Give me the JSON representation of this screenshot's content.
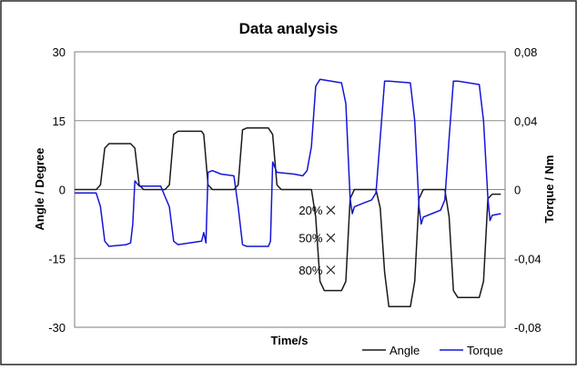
{
  "chart_data": {
    "type": "line",
    "title": "Data analysis",
    "xlabel": "Time/s",
    "ylabel": "Angle / Degree",
    "y2label": "Torque / Nm",
    "ylim": [
      -30,
      30
    ],
    "y2lim": [
      -0.08,
      0.08
    ],
    "yticks": [
      "-30",
      "-15",
      "0",
      "15",
      "30"
    ],
    "yticks_values": [
      -30,
      -15,
      0,
      15,
      30
    ],
    "y2ticks": [
      "-0,08",
      "-0,04",
      "0",
      "0,04",
      "0,08"
    ],
    "y2ticks_values": [
      -0.08,
      -0.04,
      0,
      0.04,
      0.08
    ],
    "grid": true,
    "legend_position": "bottom-right",
    "x_range": [
      0,
      100
    ],
    "series": [
      {
        "name": "Angle",
        "axis": "left",
        "color": "#1a1a1a",
        "points": [
          [
            0,
            0
          ],
          [
            5,
            0
          ],
          [
            6,
            1
          ],
          [
            7,
            9
          ],
          [
            8,
            10
          ],
          [
            13,
            10
          ],
          [
            14,
            9
          ],
          [
            15,
            1
          ],
          [
            16,
            0
          ],
          [
            21,
            0
          ],
          [
            22,
            1
          ],
          [
            23,
            12
          ],
          [
            24,
            12.7
          ],
          [
            29.5,
            12.7
          ],
          [
            30,
            12
          ],
          [
            31,
            1
          ],
          [
            32,
            0
          ],
          [
            37,
            0
          ],
          [
            38,
            1
          ],
          [
            39,
            13
          ],
          [
            40,
            13.4
          ],
          [
            45,
            13.4
          ],
          [
            46,
            12
          ],
          [
            47,
            1
          ],
          [
            48,
            0
          ],
          [
            54,
            0
          ],
          [
            55,
            0
          ],
          [
            56,
            -6
          ],
          [
            57,
            -20
          ],
          [
            58,
            -22
          ],
          [
            62,
            -22
          ],
          [
            63,
            -20
          ],
          [
            64,
            -2
          ],
          [
            65,
            0
          ],
          [
            70,
            0
          ],
          [
            71,
            -4
          ],
          [
            72,
            -18
          ],
          [
            73,
            -25.5
          ],
          [
            78,
            -25.5
          ],
          [
            79,
            -20
          ],
          [
            80,
            -2
          ],
          [
            81,
            0
          ],
          [
            86,
            0
          ],
          [
            87,
            -6
          ],
          [
            88,
            -22
          ],
          [
            89,
            -23.5
          ],
          [
            94,
            -23.5
          ],
          [
            95,
            -20
          ],
          [
            96,
            -2
          ],
          [
            97,
            -1
          ],
          [
            99,
            -1
          ]
        ]
      },
      {
        "name": "Torque",
        "axis": "right",
        "color": "#1515d6",
        "points": [
          [
            0,
            -0.002
          ],
          [
            5,
            -0.002
          ],
          [
            6,
            -0.01
          ],
          [
            7,
            -0.03
          ],
          [
            8,
            -0.033
          ],
          [
            12,
            -0.032
          ],
          [
            13,
            -0.031
          ],
          [
            13.5,
            -0.02
          ],
          [
            14,
            0.005
          ],
          [
            15,
            0.002
          ],
          [
            20,
            0.002
          ],
          [
            21,
            -0.004
          ],
          [
            22,
            -0.01
          ],
          [
            23,
            -0.03
          ],
          [
            24,
            -0.032
          ],
          [
            29.5,
            -0.03
          ],
          [
            30,
            -0.025
          ],
          [
            30.5,
            -0.031
          ],
          [
            31,
            0.01
          ],
          [
            32,
            0.011
          ],
          [
            34,
            0.009
          ],
          [
            37,
            0.008
          ],
          [
            38,
            -0.01
          ],
          [
            39,
            -0.032
          ],
          [
            40,
            -0.033
          ],
          [
            45,
            -0.033
          ],
          [
            45.5,
            -0.03
          ],
          [
            46,
            0.016
          ],
          [
            47,
            0.01
          ],
          [
            51,
            0.009
          ],
          [
            53,
            0.008
          ],
          [
            54,
            0.011
          ],
          [
            55,
            0.025
          ],
          [
            56,
            0.06
          ],
          [
            57,
            0.064
          ],
          [
            62,
            0.062
          ],
          [
            63,
            0.05
          ],
          [
            64,
            -0.005
          ],
          [
            64.5,
            -0.014
          ],
          [
            65,
            -0.01
          ],
          [
            67,
            -0.008
          ],
          [
            69,
            -0.006
          ],
          [
            70,
            -0.002
          ],
          [
            71,
            0.03
          ],
          [
            72,
            0.063
          ],
          [
            73,
            0.063
          ],
          [
            78,
            0.062
          ],
          [
            79,
            0.04
          ],
          [
            80,
            -0.01
          ],
          [
            80.5,
            -0.02
          ],
          [
            81,
            -0.016
          ],
          [
            83,
            -0.014
          ],
          [
            85,
            -0.012
          ],
          [
            86,
            -0.006
          ],
          [
            87,
            0.03
          ],
          [
            88,
            0.063
          ],
          [
            89,
            0.063
          ],
          [
            94,
            0.061
          ],
          [
            95,
            0.04
          ],
          [
            96,
            -0.005
          ],
          [
            96.5,
            -0.018
          ],
          [
            97,
            -0.015
          ],
          [
            99,
            -0.014
          ]
        ]
      }
    ],
    "annotations": [
      {
        "label": "20%",
        "x": 59.5,
        "y": -4.5
      },
      {
        "label": "50%",
        "x": 59.5,
        "y": -10.5
      },
      {
        "label": "80%",
        "x": 59.5,
        "y": -17.5
      }
    ]
  }
}
